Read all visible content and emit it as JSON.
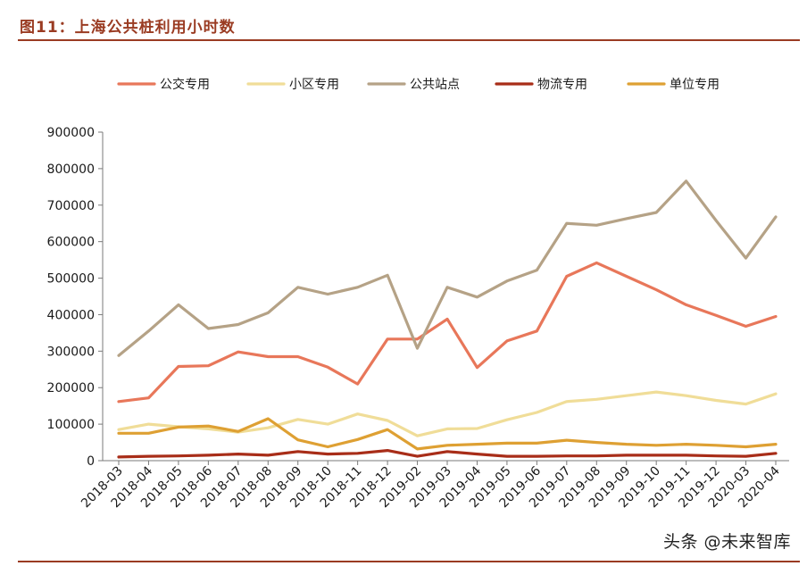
{
  "header": {
    "title": "图11：上海公共桩利用小时数"
  },
  "watermark": "头条 @未来智库",
  "chart_data": {
    "type": "line",
    "title": "图11：上海公共桩利用小时数",
    "xlabel": "",
    "ylabel": "",
    "ylim": [
      0,
      900000
    ],
    "yticks": [
      "0",
      "100000",
      "200000",
      "300000",
      "400000",
      "500000",
      "600000",
      "700000",
      "800000",
      "900000"
    ],
    "grid": false,
    "legend_position": "top",
    "categories": [
      "2018-03",
      "2018-04",
      "2018-05",
      "2018-06",
      "2018-07",
      "2018-08",
      "2018-09",
      "2018-10",
      "2018-11",
      "2018-12",
      "2019-02",
      "2019-03",
      "2019-04",
      "2019-05",
      "2019-06",
      "2019-07",
      "2019-08",
      "2019-09",
      "2019-10",
      "2019-11",
      "2019-12",
      "2020-03",
      "2020-04"
    ],
    "series": [
      {
        "name": "公交专用",
        "color": "#e8775a",
        "values": [
          162000,
          172000,
          258000,
          260000,
          298000,
          285000,
          285000,
          256000,
          210000,
          333000,
          333000,
          388000,
          255000,
          328000,
          355000,
          505000,
          542000,
          505000,
          468000,
          427000,
          398000,
          368000,
          395000
        ]
      },
      {
        "name": "小区专用",
        "color": "#f0dd98",
        "values": [
          85000,
          100000,
          93000,
          87000,
          78000,
          90000,
          113000,
          100000,
          128000,
          110000,
          68000,
          87000,
          88000,
          112000,
          132000,
          162000,
          168000,
          178000,
          188000,
          178000,
          165000,
          155000,
          183000
        ]
      },
      {
        "name": "公共站点",
        "color": "#b5a286",
        "values": [
          288000,
          355000,
          427000,
          362000,
          373000,
          405000,
          475000,
          456000,
          475000,
          508000,
          308000,
          475000,
          448000,
          492000,
          522000,
          650000,
          645000,
          663000,
          680000,
          766000,
          658000,
          555000,
          668000
        ]
      },
      {
        "name": "物流专用",
        "color": "#a82d18",
        "values": [
          10000,
          12000,
          13000,
          15000,
          18000,
          15000,
          25000,
          18000,
          20000,
          28000,
          12000,
          25000,
          18000,
          12000,
          12000,
          13000,
          13000,
          15000,
          15000,
          15000,
          13000,
          12000,
          20000
        ]
      },
      {
        "name": "单位专用",
        "color": "#dea033",
        "values": [
          75000,
          75000,
          92000,
          95000,
          80000,
          115000,
          57000,
          38000,
          58000,
          85000,
          32000,
          42000,
          45000,
          48000,
          48000,
          56000,
          50000,
          45000,
          42000,
          45000,
          42000,
          38000,
          45000
        ]
      }
    ]
  }
}
